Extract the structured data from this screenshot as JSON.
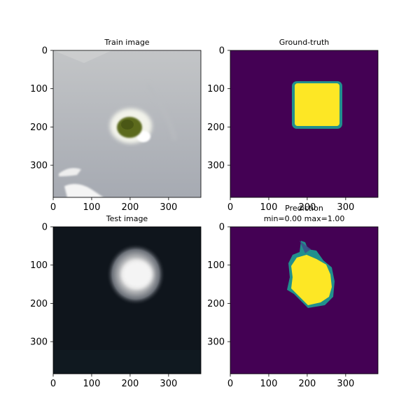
{
  "chart_data": [
    {
      "type": "heatmap",
      "title": "Train image",
      "subtitle": "",
      "xlabel": "",
      "ylabel": "",
      "xlim": [
        0,
        384
      ],
      "ylim": [
        384,
        0
      ],
      "xticks": [
        0,
        100,
        200,
        300
      ],
      "yticks": [
        0,
        100,
        200,
        300
      ],
      "content": "photo",
      "background_color": "#aeb1b6",
      "object": {
        "cx": 200,
        "cy": 200,
        "r": 30,
        "color": "#6f7f22"
      }
    },
    {
      "type": "heatmap",
      "title": "Ground-truth",
      "subtitle": "",
      "xlabel": "",
      "ylabel": "",
      "xlim": [
        0,
        384
      ],
      "ylim": [
        384,
        0
      ],
      "xticks": [
        0,
        100,
        200,
        300
      ],
      "yticks": [
        0,
        100,
        200,
        300
      ],
      "colormap": "viridis",
      "value_range": [
        0,
        1
      ],
      "mask": {
        "x0": 165,
        "y0": 85,
        "x1": 285,
        "y1": 200,
        "value": 1
      }
    },
    {
      "type": "heatmap",
      "title": "Test image",
      "subtitle": "",
      "xlabel": "",
      "ylabel": "",
      "xlim": [
        0,
        384
      ],
      "ylim": [
        384,
        0
      ],
      "xticks": [
        0,
        100,
        200,
        300
      ],
      "yticks": [
        0,
        100,
        200,
        300
      ],
      "content": "photo",
      "background_color": "#0f151c",
      "object": {
        "cx": 215,
        "cy": 140,
        "r": 45,
        "color": "#e2e2e2"
      }
    },
    {
      "type": "heatmap",
      "title": "Prediction",
      "subtitle": "min=0.00 max=1.00",
      "xlabel": "",
      "ylabel": "",
      "xlim": [
        0,
        384
      ],
      "ylim": [
        384,
        0
      ],
      "xticks": [
        0,
        100,
        200,
        300
      ],
      "yticks": [
        0,
        100,
        200,
        300
      ],
      "colormap": "viridis",
      "value_range": [
        0.0,
        1.0
      ],
      "mask": {
        "cx": 215,
        "cy": 145,
        "rx": 55,
        "ry": 60,
        "value": 1
      }
    }
  ]
}
